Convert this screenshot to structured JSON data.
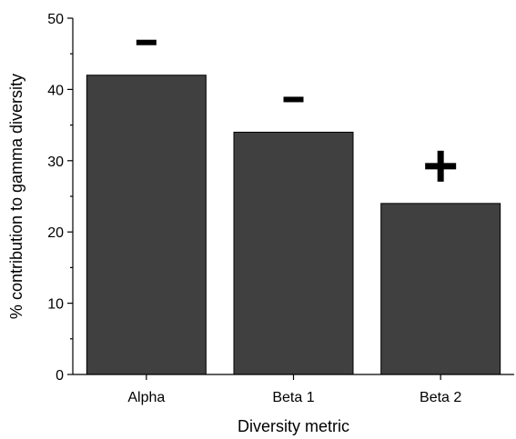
{
  "chart_data": {
    "type": "bar",
    "categories": [
      "Alpha",
      "Beta 1",
      "Beta 2"
    ],
    "values": [
      42,
      34,
      24
    ],
    "annotations": [
      "-",
      "-",
      "+"
    ],
    "xlabel": "Diversity metric",
    "ylabel": "% contribution to gamma diversity",
    "ylim": [
      0,
      50
    ],
    "yticks": [
      0,
      10,
      20,
      30,
      40,
      50
    ],
    "grid": false,
    "bar_color": "#404040",
    "bar_edge_color": "#000000"
  }
}
